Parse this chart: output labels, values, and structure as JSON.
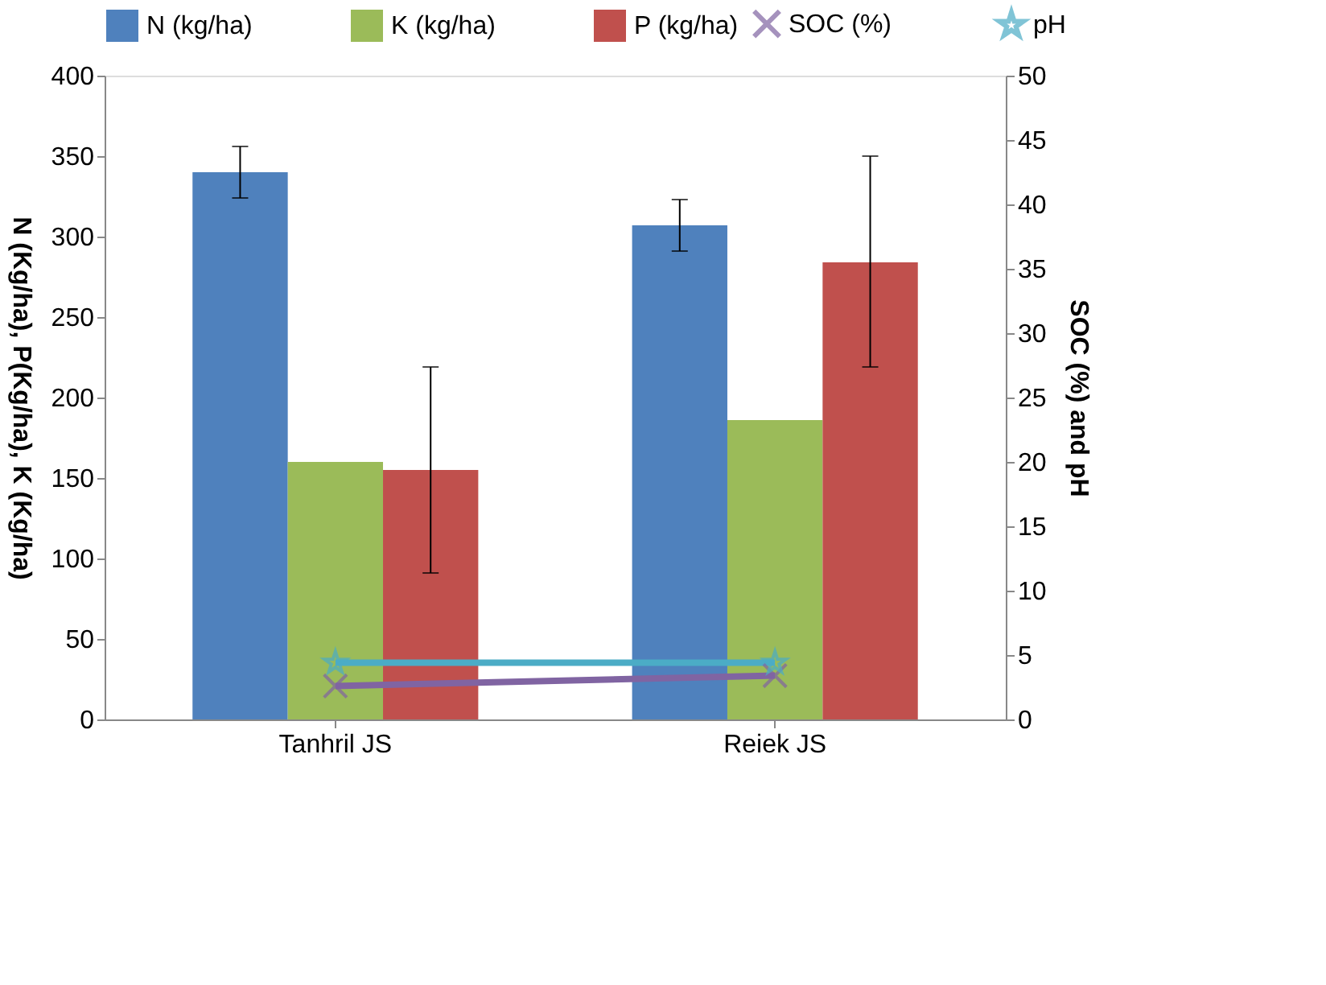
{
  "chart_data": {
    "type": "bar",
    "categories": [
      "Tanhril JS",
      "Reiek JS"
    ],
    "ylabel": "N (Kg/ha), P(Kg/ha), K (Kg/ha)",
    "y2label": "SOC (%) and pH",
    "ylim": [
      0,
      400
    ],
    "yticks": [
      0,
      50,
      100,
      150,
      200,
      250,
      300,
      350,
      400
    ],
    "y2lim": [
      0,
      50
    ],
    "y2ticks": [
      0,
      5,
      10,
      15,
      20,
      25,
      30,
      35,
      40,
      45,
      50
    ],
    "legend": "top",
    "grid": false,
    "series": [
      {
        "name": "N (kg/ha)",
        "color": "#4f81bd",
        "values": [
          340,
          307
        ],
        "errors": [
          16,
          16
        ]
      },
      {
        "name": "K (kg/ha)",
        "color": "#9bbb59",
        "values": [
          160,
          186
        ]
      },
      {
        "name": "P (kg/ha)",
        "color": "#c0504d",
        "values": [
          155,
          284
        ],
        "errors": [
          64,
          [
            219,
            350
          ]
        ]
      },
      {
        "name": "SOC (%)",
        "type": "line",
        "axis": "y2",
        "color": "#8064a2",
        "marker": "cross",
        "values": [
          2.6,
          3.4
        ]
      },
      {
        "name": "pH",
        "type": "line",
        "axis": "y2",
        "color": "#4bacc6",
        "marker": "star",
        "values": [
          4.4,
          4.4
        ]
      }
    ]
  }
}
